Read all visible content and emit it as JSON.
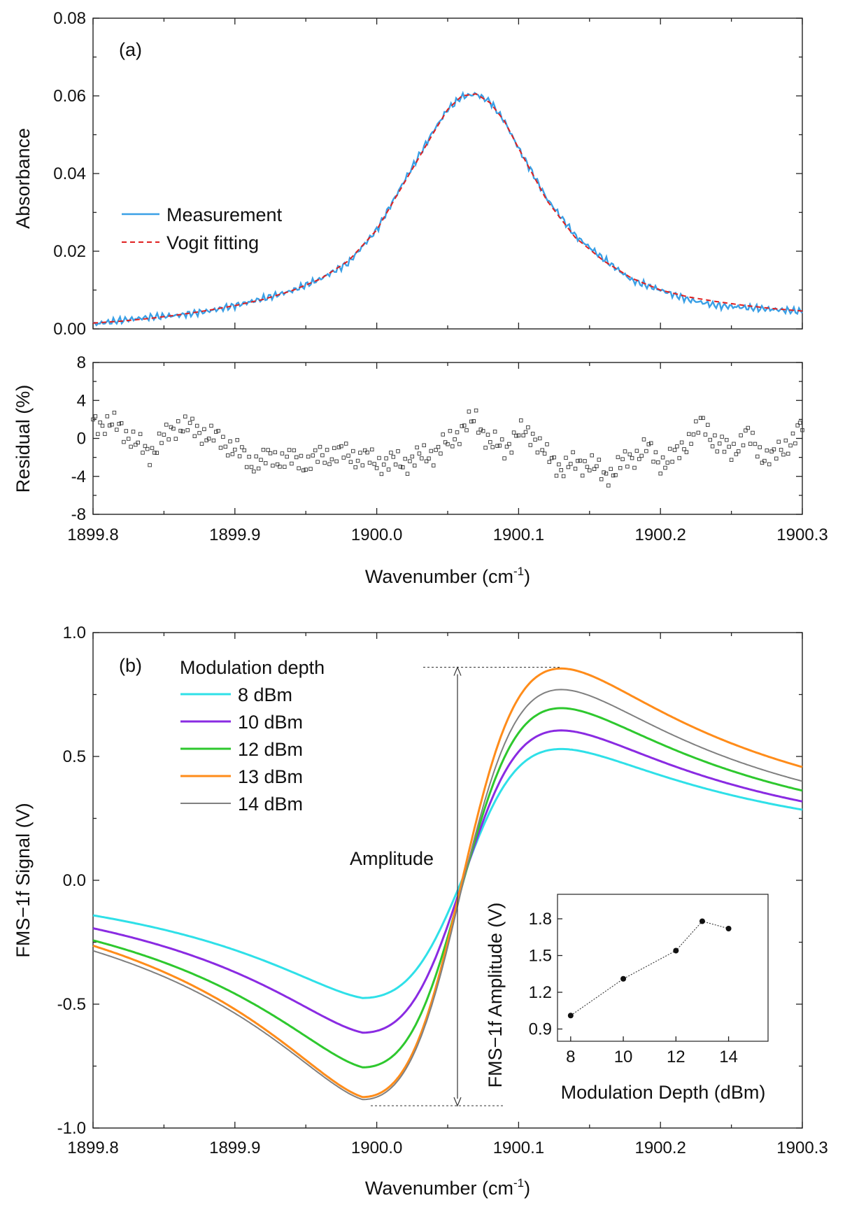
{
  "chart_data": [
    {
      "id": "a_top",
      "type": "line",
      "panel_label": "(a)",
      "xlabel": "",
      "ylabel": "Absorbance",
      "xlim": [
        1899.8,
        1900.3
      ],
      "ylim": [
        0,
        0.08
      ],
      "yticks": [
        "0.00",
        "0.02",
        "0.04",
        "0.06",
        "0.08"
      ],
      "legend_position": "center-left",
      "series": [
        {
          "name": "Measurement",
          "color": "#3aa0e6",
          "style": "solid",
          "x": [
            1899.8,
            1899.82,
            1899.84,
            1899.86,
            1899.88,
            1899.9,
            1899.92,
            1899.94,
            1899.96,
            1899.98,
            1900.0,
            1900.02,
            1900.04,
            1900.05,
            1900.06,
            1900.07,
            1900.08,
            1900.09,
            1900.1,
            1900.12,
            1900.14,
            1900.16,
            1900.18,
            1900.2,
            1900.22,
            1900.24,
            1900.26,
            1900.28,
            1900.3
          ],
          "y": [
            0.0012,
            0.0022,
            0.003,
            0.0035,
            0.0045,
            0.006,
            0.0078,
            0.0098,
            0.0128,
            0.017,
            0.0255,
            0.0385,
            0.051,
            0.0565,
            0.0598,
            0.0605,
            0.0585,
            0.0535,
            0.0465,
            0.0335,
            0.024,
            0.018,
            0.0125,
            0.01,
            0.0075,
            0.006,
            0.0055,
            0.005,
            0.0045
          ]
        },
        {
          "name": "Vogit fitting",
          "color": "#e02020",
          "style": "dashed",
          "x": [
            1899.8,
            1899.82,
            1899.84,
            1899.86,
            1899.88,
            1899.9,
            1899.92,
            1899.94,
            1899.96,
            1899.98,
            1900.0,
            1900.02,
            1900.04,
            1900.05,
            1900.06,
            1900.07,
            1900.08,
            1900.09,
            1900.1,
            1900.12,
            1900.14,
            1900.16,
            1900.18,
            1900.2,
            1900.22,
            1900.24,
            1900.26,
            1900.28,
            1900.3
          ],
          "y": [
            0.0015,
            0.002,
            0.0027,
            0.0036,
            0.0047,
            0.006,
            0.0076,
            0.0098,
            0.0128,
            0.0175,
            0.0255,
            0.038,
            0.0505,
            0.0565,
            0.06,
            0.0605,
            0.0582,
            0.0535,
            0.0465,
            0.033,
            0.0235,
            0.0175,
            0.013,
            0.01,
            0.0082,
            0.007,
            0.006,
            0.0052,
            0.0046
          ]
        }
      ]
    },
    {
      "id": "a_bottom",
      "type": "scatter",
      "xlabel": "Wavenumber (cm",
      "xlabel_sup": "-1",
      "xlabel_close": ")",
      "ylabel": "Residual (%)",
      "xlim": [
        1899.8,
        1900.3
      ],
      "ylim": [
        -8,
        8
      ],
      "xticks": [
        "1899.8",
        "1899.9",
        "1900.0",
        "1900.1",
        "1900.2",
        "1900.3"
      ],
      "yticks": [
        "-8",
        "-4",
        "0",
        "4",
        "8"
      ],
      "series": [
        {
          "name": "Residual",
          "marker": "open-square",
          "trend_x": [
            1899.8,
            1899.82,
            1899.83,
            1899.84,
            1899.86,
            1899.88,
            1899.9,
            1899.91,
            1899.93,
            1899.95,
            1899.97,
            1899.99,
            1900.0,
            1900.02,
            1900.04,
            1900.05,
            1900.06,
            1900.07,
            1900.08,
            1900.09,
            1900.1,
            1900.11,
            1900.12,
            1900.13,
            1900.15,
            1900.16,
            1900.18,
            1900.19,
            1900.2,
            1900.21,
            1900.22,
            1900.23,
            1900.24,
            1900.25,
            1900.26,
            1900.27,
            1900.28,
            1900.29,
            1900.3
          ],
          "trend_y": [
            1.8,
            1.2,
            -0.5,
            -1.5,
            1.5,
            0.5,
            -1.0,
            -2.5,
            -2.0,
            -2.5,
            -1.5,
            -2.0,
            -2.5,
            -2.5,
            -1.5,
            -0.5,
            1.0,
            2.0,
            -0.5,
            -1.0,
            0.5,
            0.5,
            -2.0,
            -3.0,
            -2.5,
            -4.0,
            -2.0,
            -1.0,
            -2.5,
            -2.0,
            0.0,
            1.5,
            -0.5,
            -1.5,
            0.5,
            -1.5,
            -2.0,
            -0.5,
            1.2
          ]
        }
      ]
    },
    {
      "id": "b_main",
      "type": "line",
      "panel_label": "(b)",
      "xlabel": "Wavenumber (cm",
      "xlabel_sup": "-1",
      "xlabel_close": ")",
      "ylabel": "FMS−1f Signal (V)",
      "xlim": [
        1899.8,
        1900.3
      ],
      "ylim": [
        -1.0,
        1.0
      ],
      "xticks": [
        "1899.8",
        "1899.9",
        "1900.0",
        "1900.1",
        "1900.2",
        "1900.3"
      ],
      "yticks": [
        "-1.0",
        "-0.5",
        "0.0",
        "0.5",
        "1.0"
      ],
      "legend_title": "Modulation depth",
      "legend_position": "top-left",
      "annotation": "Amplitude",
      "series": [
        {
          "name": "8 dBm",
          "color": "#2fe0e8",
          "width": 3,
          "A": 0.475,
          "B": 0.53,
          "offset": 0.0
        },
        {
          "name": "10 dBm",
          "color": "#8a2be2",
          "width": 3,
          "A": 0.6,
          "B": 0.62,
          "offset": -0.015
        },
        {
          "name": "12 dBm",
          "color": "#2ec82e",
          "width": 3,
          "A": 0.73,
          "B": 0.72,
          "offset": -0.025
        },
        {
          "name": "13 dBm",
          "color": "#ff8c1a",
          "width": 3,
          "A": 0.87,
          "B": 0.86,
          "offset": -0.005
        },
        {
          "name": "14 dBm",
          "color": "#808080",
          "width": 2,
          "A": 0.855,
          "B": 0.8,
          "offset": -0.03
        }
      ]
    },
    {
      "id": "b_inset",
      "type": "line",
      "xlabel": "Modulation Depth (dBm)",
      "ylabel": "FMS−1f Amplitude (V)",
      "xlim": [
        7.5,
        15.5
      ],
      "ylim": [
        0.8,
        2.0
      ],
      "xticks": [
        "8",
        "10",
        "12",
        "14"
      ],
      "yticks": [
        "0.9",
        "1.2",
        "1.5",
        "1.8"
      ],
      "x": [
        8,
        10,
        12,
        13,
        14
      ],
      "y": [
        1.01,
        1.31,
        1.54,
        1.78,
        1.72
      ]
    }
  ]
}
